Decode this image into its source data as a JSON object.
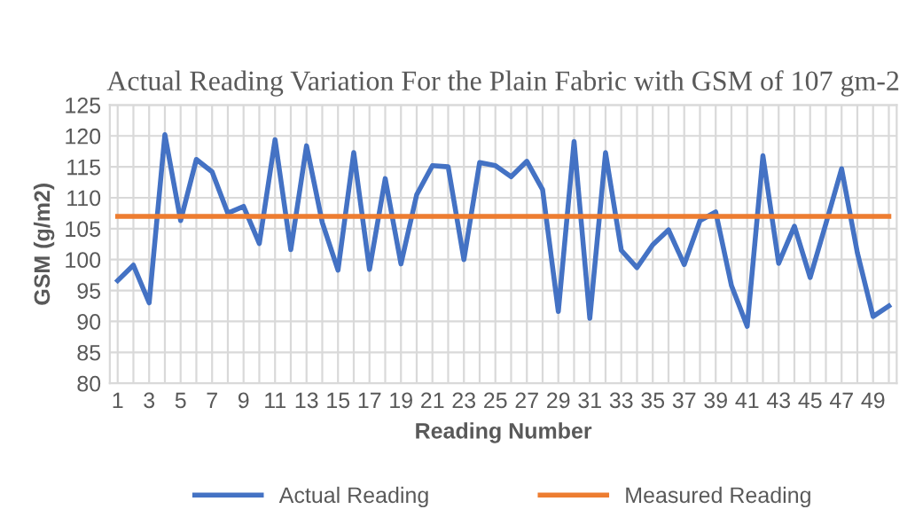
{
  "chart_data": {
    "type": "line",
    "title": "Actual Reading Variation For the Plain Fabric with GSM of 107 gm-2",
    "xlabel": "Reading Number",
    "ylabel": "GSM (g/m2)",
    "categories": [
      "1",
      null,
      "3",
      null,
      "5",
      null,
      "7",
      null,
      "9",
      null,
      "11",
      null,
      "13",
      null,
      "15",
      null,
      "17",
      null,
      "19",
      null,
      "21",
      null,
      "23",
      null,
      "25",
      null,
      "27",
      null,
      "29",
      null,
      "31",
      null,
      "33",
      null,
      "35",
      null,
      "37",
      null,
      "39",
      null,
      "41",
      null,
      "43",
      null,
      "45",
      null,
      "47",
      null,
      "49",
      null
    ],
    "series": [
      {
        "name": "Actual Reading",
        "color": "#4472c4",
        "values": [
          96.6,
          99.1,
          93,
          120.2,
          106.3,
          116.2,
          114.2,
          107.5,
          108.6,
          102.6,
          119.4,
          101.6,
          118.4,
          106,
          98.3,
          117.3,
          98.4,
          113.1,
          99.3,
          110.5,
          115.2,
          115,
          100,
          115.7,
          115.2,
          113.4,
          115.9,
          111.3,
          91.6,
          119.1,
          90.5,
          117.3,
          101.5,
          98.7,
          102.4,
          104.8,
          99.2,
          106.3,
          107.7,
          95.8,
          89.2,
          116.8,
          99.4,
          105.4,
          97.1,
          105.8,
          114.7,
          101.1,
          90.8,
          92.5
        ]
      },
      {
        "name": "Measured Reading",
        "color": "#ed7d31",
        "values": [
          107,
          107,
          107,
          107,
          107,
          107,
          107,
          107,
          107,
          107,
          107,
          107,
          107,
          107,
          107,
          107,
          107,
          107,
          107,
          107,
          107,
          107,
          107,
          107,
          107,
          107,
          107,
          107,
          107,
          107,
          107,
          107,
          107,
          107,
          107,
          107,
          107,
          107,
          107,
          107,
          107,
          107,
          107,
          107,
          107,
          107,
          107,
          107,
          107,
          107
        ]
      }
    ],
    "ylim": [
      80,
      125
    ],
    "yticks": [
      80,
      85,
      90,
      95,
      100,
      105,
      110,
      115,
      120,
      125
    ],
    "grid": true,
    "legend": "bottom",
    "marker": "none",
    "line_style": "solid"
  }
}
